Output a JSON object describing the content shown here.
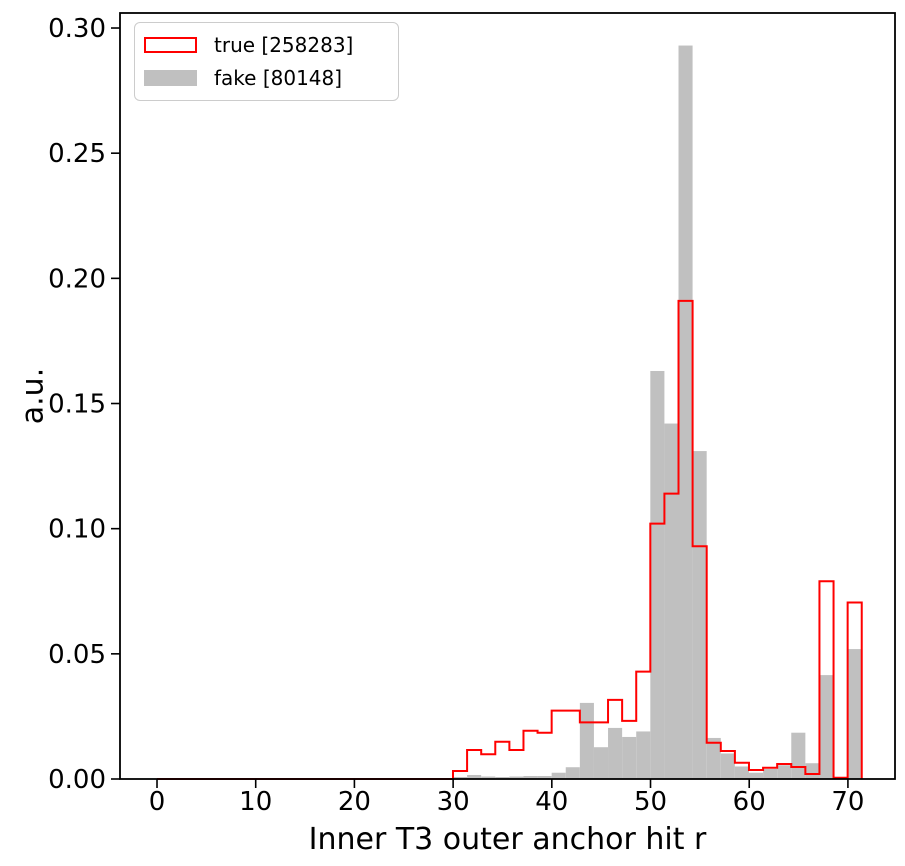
{
  "figure": {
    "background": "#ffffff"
  },
  "axes": {
    "xlabel": "Inner T3 outer anchor hit r",
    "ylabel": "a.u.",
    "xlim": [
      -3.75,
      74.77
    ],
    "ylim": [
      0,
      0.306
    ],
    "xticks": [
      0,
      10,
      20,
      30,
      40,
      50,
      60,
      70
    ],
    "ytick_labels": [
      "0.00",
      "0.05",
      "0.10",
      "0.15",
      "0.20",
      "0.25",
      "0.30"
    ],
    "ytick_values": [
      0.0,
      0.05,
      0.1,
      0.15,
      0.2,
      0.25,
      0.3
    ],
    "spine_color": "#000000",
    "tick_color": "#000000",
    "grid": "off"
  },
  "legend": {
    "position": "upper left",
    "items": [
      {
        "label": "true [258283]",
        "style": "outline",
        "color": "#ff0000"
      },
      {
        "label": "fake [80148]",
        "style": "fill",
        "color": "#c0c0c0"
      }
    ]
  },
  "chart_data": {
    "type": "bar",
    "subtype": "overlaid histograms (step outline + filled)",
    "title": "",
    "xlabel": "Inner T3 outer anchor hit r",
    "ylabel": "a.u.",
    "xlim": [
      -3.75,
      74.77
    ],
    "ylim": [
      0,
      0.306
    ],
    "bin_start": 0,
    "bin_width": 1.428,
    "n_bins": 50,
    "legend_position": "upper left",
    "series": [
      {
        "name": "true [258283]",
        "entries": 258283,
        "style": "step-outline",
        "color": "#ff0000",
        "values": [
          0,
          0,
          0,
          0,
          0,
          0,
          0,
          0,
          0,
          0,
          0,
          0,
          0,
          0,
          0,
          0,
          0,
          0,
          0,
          0,
          0,
          0.0032,
          0.0116,
          0.0099,
          0.0149,
          0.0116,
          0.0193,
          0.0185,
          0.0273,
          0.0273,
          0.0226,
          0.0226,
          0.0316,
          0.0232,
          0.0429,
          0.102,
          0.114,
          0.191,
          0.093,
          0.0145,
          0.0112,
          0.0065,
          0.0036,
          0.0045,
          0.006,
          0.0048,
          0.002,
          0.079,
          0.0005,
          0.0705
        ]
      },
      {
        "name": "fake [80148]",
        "entries": 80148,
        "style": "filled",
        "color": "#c0c0c0",
        "values": [
          0,
          0,
          0,
          0,
          0,
          0,
          0,
          0,
          0,
          0,
          0,
          0,
          0,
          0,
          0,
          0,
          0,
          0,
          0,
          0,
          0,
          0.0008,
          0.0016,
          0.001,
          0.0008,
          0.001,
          0.0012,
          0.0012,
          0.0025,
          0.0047,
          0.0304,
          0.0127,
          0.0204,
          0.0168,
          0.019,
          0.163,
          0.142,
          0.293,
          0.131,
          0.0164,
          0.0102,
          0.005,
          0.0025,
          0.004,
          0.0055,
          0.0185,
          0.0063,
          0.0415,
          0.0005,
          0.0519
        ]
      }
    ]
  }
}
